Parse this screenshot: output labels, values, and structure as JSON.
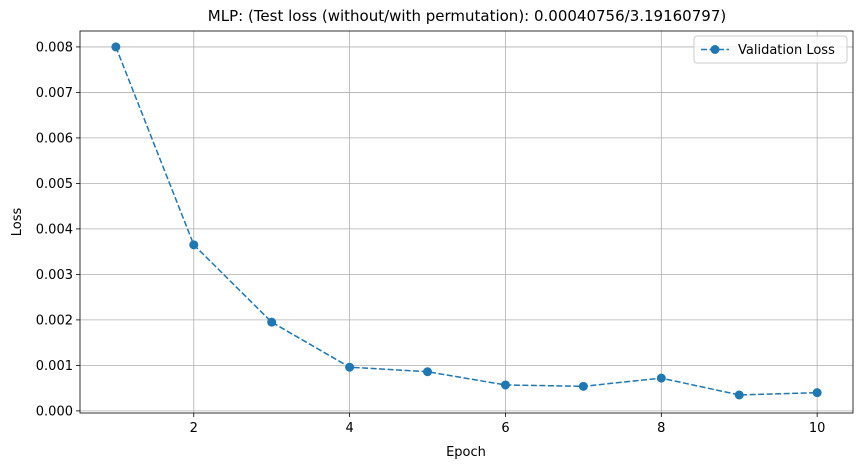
{
  "chart_data": {
    "type": "line",
    "title": "MLP: (Test loss (without/with permutation): 0.00040756/3.19160797)",
    "xlabel": "Epoch",
    "ylabel": "Loss",
    "xlim": [
      0.54,
      10.46
    ],
    "ylim": [
      -4.66e-05,
      0.00835
    ],
    "xticks": [
      2,
      4,
      6,
      8,
      10
    ],
    "xtick_labels": [
      "2",
      "4",
      "6",
      "8",
      "10"
    ],
    "yticks": [
      0.0,
      0.001,
      0.002,
      0.003,
      0.004,
      0.005,
      0.006,
      0.007,
      0.008
    ],
    "ytick_labels": [
      "0.000",
      "0.001",
      "0.002",
      "0.003",
      "0.004",
      "0.005",
      "0.006",
      "0.007",
      "0.008"
    ],
    "grid": true,
    "legend_position": "top-right",
    "series": [
      {
        "name": "Validation Loss",
        "color": "#1f77b4",
        "line_style": "dashed",
        "marker": "circle",
        "x": [
          1,
          2,
          3,
          4,
          5,
          6,
          7,
          8,
          9,
          10
        ],
        "y": [
          0.008,
          0.00365,
          0.00195,
          0.00096,
          0.00086,
          0.00057,
          0.00054,
          0.00072,
          0.00035,
          0.0004
        ]
      }
    ]
  }
}
